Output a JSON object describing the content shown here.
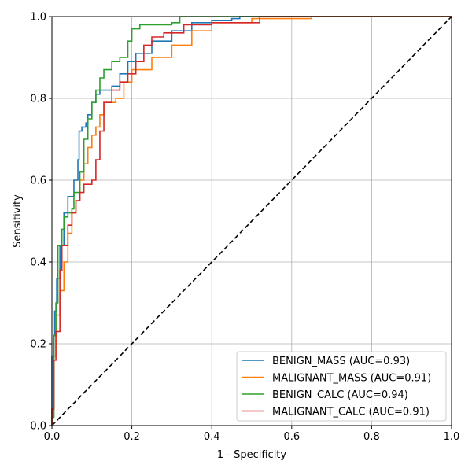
{
  "chart_data": {
    "type": "line",
    "title": "",
    "xlabel": "1 - Specificity",
    "ylabel": "Sensitivity",
    "xlim": [
      0,
      1
    ],
    "ylim": [
      0,
      1
    ],
    "xticks": [
      "0.0",
      "0.2",
      "0.4",
      "0.6",
      "0.8",
      "1.0"
    ],
    "yticks": [
      "0.0",
      "0.2",
      "0.4",
      "0.6",
      "0.8",
      "1.0"
    ],
    "grid": true,
    "legend_position": "lower-right",
    "diagonal": {
      "name": "chance",
      "style": "dashed",
      "color": "#000000",
      "points": [
        [
          0,
          0
        ],
        [
          1,
          1
        ]
      ]
    },
    "series": [
      {
        "name": "BENIGN_MASS (AUC=0.93)",
        "color": "#1f77b4",
        "points": [
          [
            0,
            0
          ],
          [
            0,
            0.17
          ],
          [
            0.005,
            0.22
          ],
          [
            0.007,
            0.28
          ],
          [
            0.012,
            0.36
          ],
          [
            0.02,
            0.44
          ],
          [
            0.03,
            0.52
          ],
          [
            0.04,
            0.56
          ],
          [
            0.055,
            0.6
          ],
          [
            0.065,
            0.65
          ],
          [
            0.068,
            0.72
          ],
          [
            0.075,
            0.73
          ],
          [
            0.085,
            0.74
          ],
          [
            0.09,
            0.76
          ],
          [
            0.1,
            0.79
          ],
          [
            0.11,
            0.81
          ],
          [
            0.12,
            0.82
          ],
          [
            0.15,
            0.83
          ],
          [
            0.17,
            0.86
          ],
          [
            0.19,
            0.89
          ],
          [
            0.21,
            0.91
          ],
          [
            0.25,
            0.94
          ],
          [
            0.3,
            0.965
          ],
          [
            0.35,
            0.985
          ],
          [
            0.4,
            0.99
          ],
          [
            0.45,
            0.995
          ],
          [
            0.47,
            1.0
          ],
          [
            0.6,
            1.0
          ],
          [
            1,
            1
          ]
        ]
      },
      {
        "name": "MALIGNANT_MASS (AUC=0.91)",
        "color": "#ff7f0e",
        "points": [
          [
            0,
            0
          ],
          [
            0,
            0.04
          ],
          [
            0.005,
            0.17
          ],
          [
            0.01,
            0.27
          ],
          [
            0.02,
            0.33
          ],
          [
            0.03,
            0.4
          ],
          [
            0.04,
            0.47
          ],
          [
            0.05,
            0.52
          ],
          [
            0.06,
            0.55
          ],
          [
            0.07,
            0.6
          ],
          [
            0.08,
            0.64
          ],
          [
            0.09,
            0.68
          ],
          [
            0.1,
            0.71
          ],
          [
            0.11,
            0.73
          ],
          [
            0.12,
            0.76
          ],
          [
            0.13,
            0.79
          ],
          [
            0.16,
            0.8
          ],
          [
            0.18,
            0.84
          ],
          [
            0.2,
            0.87
          ],
          [
            0.25,
            0.9
          ],
          [
            0.3,
            0.93
          ],
          [
            0.35,
            0.965
          ],
          [
            0.4,
            0.985
          ],
          [
            0.5,
            0.995
          ],
          [
            0.65,
            1.0
          ],
          [
            1,
            1
          ]
        ]
      },
      {
        "name": "BENIGN_CALC (AUC=0.94)",
        "color": "#2ca02c",
        "points": [
          [
            0,
            0
          ],
          [
            0,
            0.02
          ],
          [
            0.005,
            0.22
          ],
          [
            0.01,
            0.3
          ],
          [
            0.015,
            0.44
          ],
          [
            0.025,
            0.48
          ],
          [
            0.03,
            0.51
          ],
          [
            0.04,
            0.52
          ],
          [
            0.05,
            0.53
          ],
          [
            0.055,
            0.57
          ],
          [
            0.07,
            0.62
          ],
          [
            0.08,
            0.7
          ],
          [
            0.09,
            0.75
          ],
          [
            0.1,
            0.79
          ],
          [
            0.11,
            0.82
          ],
          [
            0.12,
            0.85
          ],
          [
            0.13,
            0.87
          ],
          [
            0.15,
            0.89
          ],
          [
            0.17,
            0.9
          ],
          [
            0.19,
            0.94
          ],
          [
            0.2,
            0.97
          ],
          [
            0.22,
            0.98
          ],
          [
            0.3,
            0.985
          ],
          [
            0.32,
            1.0
          ],
          [
            1,
            1
          ]
        ]
      },
      {
        "name": "MALIGNANT_CALC (AUC=0.91)",
        "color": "#d62728",
        "points": [
          [
            0,
            0
          ],
          [
            0,
            0.04
          ],
          [
            0.005,
            0.16
          ],
          [
            0.01,
            0.23
          ],
          [
            0.02,
            0.38
          ],
          [
            0.025,
            0.44
          ],
          [
            0.04,
            0.49
          ],
          [
            0.05,
            0.52
          ],
          [
            0.06,
            0.55
          ],
          [
            0.07,
            0.57
          ],
          [
            0.08,
            0.59
          ],
          [
            0.1,
            0.6
          ],
          [
            0.11,
            0.65
          ],
          [
            0.12,
            0.72
          ],
          [
            0.13,
            0.79
          ],
          [
            0.15,
            0.82
          ],
          [
            0.17,
            0.84
          ],
          [
            0.19,
            0.86
          ],
          [
            0.21,
            0.89
          ],
          [
            0.23,
            0.93
          ],
          [
            0.25,
            0.95
          ],
          [
            0.28,
            0.96
          ],
          [
            0.33,
            0.98
          ],
          [
            0.4,
            0.985
          ],
          [
            0.52,
            1.0
          ],
          [
            1,
            1
          ]
        ]
      }
    ]
  }
}
